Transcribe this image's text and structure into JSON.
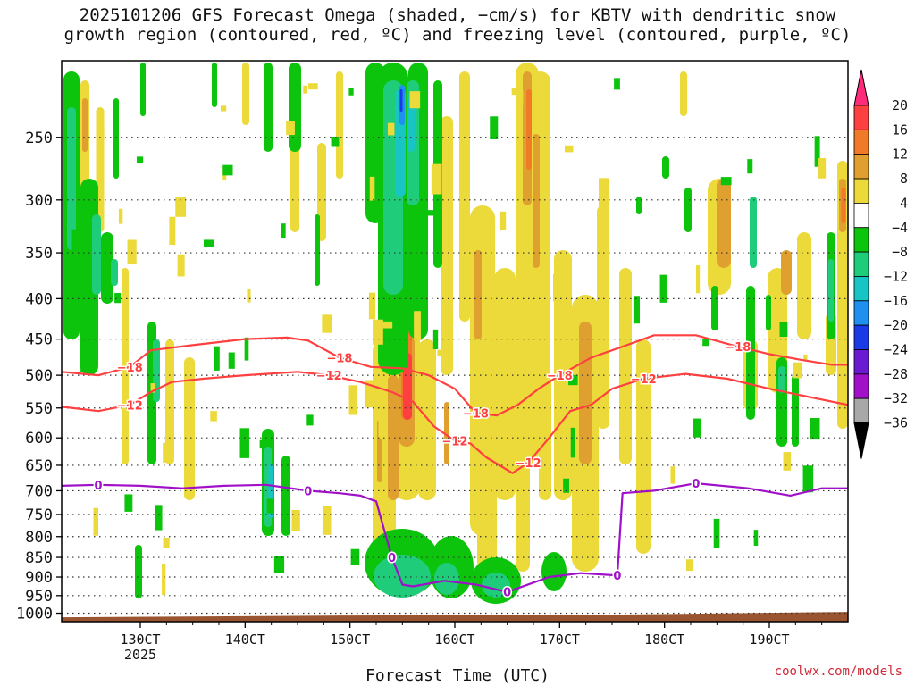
{
  "title": {
    "line1": "2025101206 GFS Forecast Omega (shaded, −cm/s) for KBTV with dendritic snow",
    "line2": "growth region (contoured, red, ºC) and freezing level (contoured, purple, ºC)"
  },
  "credit": "coolwx.com/models",
  "chart_data": {
    "type": "heatmap",
    "title": "2025101206 GFS Forecast Omega (shaded, −cm/s) for KBTV with dendritic snow growth region (contoured, red, ºC) and freezing level (contoured, purple, ºC)",
    "xlabel": "Forecast Time (UTC)",
    "ylabel": "",
    "x_tick_labels": [
      "130CT",
      "140CT",
      "150CT",
      "160CT",
      "170CT",
      "180CT",
      "190CT"
    ],
    "x_ticks_day": [
      13,
      14,
      15,
      16,
      17,
      18,
      19
    ],
    "x_sublabel": "2025",
    "xlim_day": [
      12.25,
      19.75
    ],
    "y_ticks": [
      250,
      300,
      350,
      400,
      450,
      500,
      550,
      600,
      650,
      700,
      750,
      800,
      850,
      900,
      950,
      1000
    ],
    "ylim": [
      200,
      1025
    ],
    "colorbar": {
      "labels": [
        "20",
        "16",
        "12",
        "8",
        "4",
        "−4",
        "−8",
        "−12",
        "−16",
        "−20",
        "−24",
        "−28",
        "−32",
        "−36"
      ],
      "colors": [
        "#ff2a7a",
        "#ff4040",
        "#f07a28",
        "#e0a030",
        "#ecd93a",
        "#ffffff",
        "#0dc40d",
        "#1fcc7a",
        "#19c4c4",
        "#1f8ff0",
        "#1a3ae6",
        "#6a1ad0",
        "#a010c8",
        "#a8a8a8",
        "#000000"
      ]
    },
    "contours": [
      {
        "name": "-18C",
        "label": "−18",
        "color": "#ff4040",
        "day": [
          12.25,
          12.6,
          12.9,
          13.1,
          13.5,
          14.0,
          14.4,
          14.6,
          14.9,
          15.2,
          15.5,
          15.75,
          16.0,
          16.2,
          16.4,
          16.6,
          16.8,
          17.0,
          17.3,
          17.6,
          17.9,
          18.3,
          18.7,
          19.0,
          19.3,
          19.6,
          19.75
        ],
        "pressure": [
          495,
          500,
          488,
          465,
          458,
          450,
          448,
          452,
          475,
          488,
          490,
          500,
          520,
          558,
          562,
          545,
          520,
          500,
          475,
          460,
          445,
          445,
          460,
          470,
          478,
          485,
          485
        ]
      },
      {
        "name": "-12C",
        "label": "−12",
        "color": "#ff4040",
        "day": [
          12.25,
          12.6,
          12.9,
          13.1,
          13.3,
          13.6,
          14.0,
          14.5,
          14.8,
          15.1,
          15.4,
          15.6,
          15.8,
          16.0,
          16.15,
          16.3,
          16.55,
          16.7,
          16.9,
          17.1,
          17.3,
          17.5,
          17.8,
          18.2,
          18.6,
          19.0,
          19.3,
          19.6,
          19.75
        ],
        "pressure": [
          548,
          555,
          545,
          525,
          510,
          505,
          500,
          495,
          500,
          510,
          525,
          540,
          580,
          605,
          610,
          635,
          665,
          645,
          600,
          555,
          545,
          520,
          505,
          498,
          505,
          520,
          530,
          540,
          545
        ]
      },
      {
        "name": "0C",
        "label": "0",
        "color": "#a010c8",
        "day": [
          12.25,
          12.6,
          13.0,
          13.4,
          13.8,
          14.2,
          14.6,
          14.9,
          15.1,
          15.25,
          15.4,
          15.5,
          15.6,
          15.9,
          16.2,
          16.5,
          16.6,
          16.9,
          17.2,
          17.5,
          17.55,
          17.6,
          17.9,
          18.3,
          18.8,
          19.2,
          19.5,
          19.75
        ],
        "pressure": [
          690,
          688,
          690,
          695,
          690,
          688,
          700,
          705,
          710,
          722,
          850,
          920,
          925,
          910,
          920,
          940,
          930,
          900,
          890,
          895,
          895,
          705,
          700,
          685,
          695,
          710,
          695,
          695
        ]
      }
    ],
    "surface_band_pressure": [
      1012,
      1025
    ]
  }
}
